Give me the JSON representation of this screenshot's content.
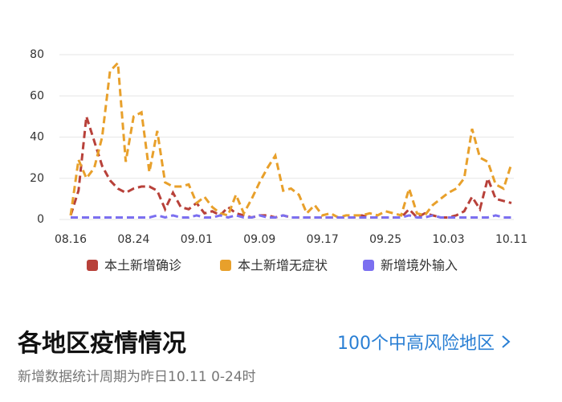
{
  "chart_data": {
    "type": "line",
    "categories": [
      "08.16",
      null,
      null,
      null,
      null,
      null,
      null,
      null,
      "08.24",
      null,
      null,
      null,
      null,
      null,
      null,
      null,
      "09.01",
      null,
      null,
      null,
      null,
      null,
      null,
      null,
      "09.09",
      null,
      null,
      null,
      null,
      null,
      null,
      null,
      "09.17",
      null,
      null,
      null,
      null,
      null,
      null,
      null,
      "09.25",
      null,
      null,
      null,
      null,
      null,
      null,
      null,
      "10.03",
      null,
      null,
      null,
      null,
      null,
      null,
      null,
      "10.11"
    ],
    "series": [
      {
        "name": "本土新增确诊",
        "color": "#b8413a",
        "values": [
          2,
          14,
          50,
          38,
          26,
          19,
          15,
          13,
          15,
          16,
          16,
          14,
          5,
          13,
          6,
          5,
          8,
          3,
          4,
          2,
          6,
          3,
          2,
          1,
          2,
          2,
          1,
          2,
          1,
          1,
          1,
          1,
          1,
          1,
          1,
          1,
          1,
          2,
          1,
          1,
          1,
          1,
          1,
          5,
          1,
          3,
          2,
          1,
          1,
          2,
          4,
          11,
          5,
          20,
          10,
          9,
          8
        ]
      },
      {
        "name": "本土新增无症状",
        "color": "#e8a02b",
        "values": [
          2,
          29,
          20,
          25,
          40,
          72,
          76,
          28,
          50,
          52,
          23,
          43,
          18,
          16,
          16,
          17,
          8,
          11,
          6,
          3,
          2,
          12,
          3,
          10,
          18,
          25,
          31,
          14,
          15,
          12,
          3,
          7,
          2,
          3,
          1,
          2,
          2,
          2,
          3,
          2,
          4,
          3,
          2,
          15,
          3,
          2,
          7,
          10,
          13,
          15,
          20,
          44,
          30,
          28,
          17,
          15,
          27
        ]
      },
      {
        "name": "新增境外输入",
        "color": "#7b6ff0",
        "values": [
          1,
          1,
          1,
          1,
          1,
          1,
          1,
          1,
          1,
          1,
          1,
          2,
          1,
          2,
          1,
          1,
          2,
          1,
          1,
          2,
          1,
          2,
          1,
          1,
          2,
          1,
          1,
          2,
          1,
          1,
          1,
          1,
          1,
          1,
          1,
          1,
          1,
          1,
          1,
          1,
          1,
          1,
          1,
          2,
          1,
          1,
          2,
          1,
          1,
          1,
          1,
          1,
          1,
          1,
          2,
          1,
          1
        ]
      }
    ],
    "ylim": [
      0,
      80
    ],
    "yticks": [
      0,
      20,
      40,
      60,
      80
    ],
    "grid": true,
    "legend": "bottom",
    "dashed": true
  },
  "section": {
    "heading": "各地区疫情情况",
    "link": "100个中高风险地区",
    "subtitle": "新增数据统计周期为昨日10.11 0-24时"
  }
}
